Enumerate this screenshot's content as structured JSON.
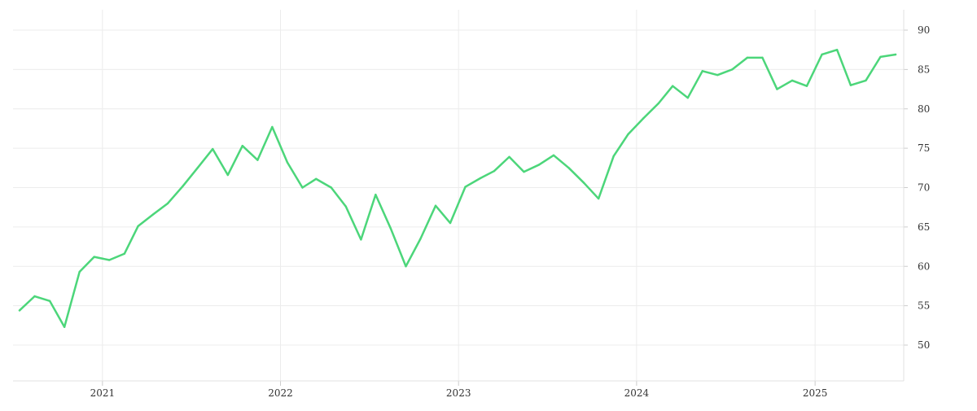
{
  "chart_data": {
    "type": "line",
    "title": "",
    "xlabel": "",
    "ylabel": "",
    "x_tick_labels": [
      "2021",
      "2022",
      "2023",
      "2024",
      "2025"
    ],
    "y_tick_labels": [
      "50",
      "55",
      "60",
      "65",
      "70",
      "75",
      "80",
      "85",
      "90"
    ],
    "ylim": [
      45.5,
      92
    ],
    "xlim": [
      "2020-07-01",
      "2025-06-30"
    ],
    "grid": true,
    "legend": "none",
    "y_axis_side": "right",
    "series": [
      {
        "color": "#4cd67a",
        "x": [
          "2020-07-15",
          "2020-08-15",
          "2020-09-15",
          "2020-10-15",
          "2020-11-15",
          "2020-12-15",
          "2021-01-15",
          "2021-02-15",
          "2021-03-15",
          "2021-04-15",
          "2021-05-15",
          "2021-06-15",
          "2021-07-15",
          "2021-08-15",
          "2021-09-15",
          "2021-10-15",
          "2021-11-15",
          "2021-12-15",
          "2022-01-15",
          "2022-02-15",
          "2022-03-15",
          "2022-04-15",
          "2022-05-15",
          "2022-06-15",
          "2022-07-15",
          "2022-08-15",
          "2022-09-15",
          "2022-10-15",
          "2022-11-15",
          "2022-12-15",
          "2023-01-15",
          "2023-02-15",
          "2023-03-15",
          "2023-04-15",
          "2023-05-15",
          "2023-06-15",
          "2023-07-15",
          "2023-08-15",
          "2023-09-15",
          "2023-10-15",
          "2023-11-15",
          "2023-12-15",
          "2024-01-15",
          "2024-02-15",
          "2024-03-15",
          "2024-04-15",
          "2024-05-15",
          "2024-06-15",
          "2024-07-15",
          "2024-08-15",
          "2024-09-15",
          "2024-10-15",
          "2024-11-15",
          "2024-12-15",
          "2025-01-15",
          "2025-02-15",
          "2025-03-15",
          "2025-04-15",
          "2025-05-15",
          "2025-06-15"
        ],
        "values": [
          54.4,
          56.2,
          55.6,
          52.3,
          59.3,
          61.2,
          60.8,
          61.6,
          65.1,
          66.6,
          68.0,
          70.2,
          72.5,
          74.9,
          71.6,
          75.3,
          73.5,
          77.7,
          73.2,
          70.0,
          71.1,
          70.0,
          67.6,
          63.4,
          69.1,
          64.8,
          60.0,
          63.5,
          67.7,
          65.5,
          70.1,
          71.2,
          72.1,
          73.9,
          72.0,
          72.9,
          74.1,
          72.5,
          70.6,
          68.6,
          74.0,
          76.8,
          78.8,
          80.7,
          82.9,
          81.4,
          84.8,
          84.3,
          85.0,
          86.5,
          86.5,
          82.5,
          83.6,
          82.9,
          86.9,
          87.5,
          83.0,
          83.6,
          86.6,
          86.9
        ]
      }
    ]
  }
}
